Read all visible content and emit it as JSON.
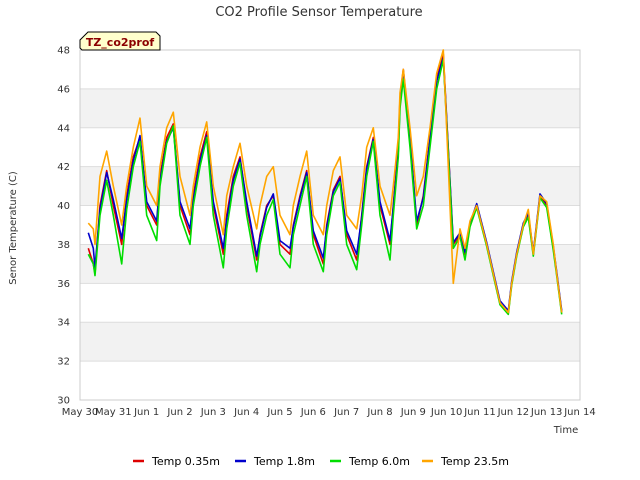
{
  "chart_data": {
    "type": "line",
    "title": "CO2 Profile Sensor Temperature",
    "xlabel": "Time",
    "ylabel": "Senor Temperature (C)",
    "badge": "TZ_co2prof",
    "ylim": [
      30,
      48
    ],
    "yticks": [
      30,
      32,
      34,
      36,
      38,
      40,
      42,
      44,
      46,
      48
    ],
    "xlim": [
      0,
      15
    ],
    "xticks": [
      "May 30",
      "May 31",
      "Jun 1",
      "Jun 2",
      "Jun 3",
      "Jun 4",
      "Jun 5",
      "Jun 6",
      "Jun 7",
      "Jun 8",
      "Jun 9",
      "Jun 10",
      "Jun 11",
      "Jun 12",
      "Jun 13",
      "Jun 14"
    ],
    "grid": true,
    "legend": "bottom",
    "series": [
      {
        "name": "Temp 0.35m",
        "color": "#dd0000",
        "x": [
          0.25,
          0.4,
          0.45,
          0.6,
          0.8,
          1.0,
          1.25,
          1.4,
          1.6,
          1.8,
          2.0,
          2.3,
          2.4,
          2.6,
          2.8,
          3.0,
          3.3,
          3.4,
          3.6,
          3.8,
          4.0,
          4.3,
          4.4,
          4.6,
          4.8,
          5.0,
          5.3,
          5.4,
          5.6,
          5.8,
          6.0,
          6.3,
          6.4,
          6.6,
          6.8,
          7.0,
          7.3,
          7.4,
          7.6,
          7.8,
          8.0,
          8.3,
          8.45,
          8.6,
          8.8,
          9.0,
          9.3,
          9.4,
          9.55,
          9.6,
          9.7,
          9.9,
          10.1,
          10.3,
          10.5,
          10.7,
          10.9,
          11.2,
          11.4,
          11.55,
          11.7,
          11.9,
          12.2,
          12.4,
          12.6,
          12.85,
          12.95,
          13.1,
          13.3,
          13.45,
          13.6,
          13.8,
          14.0,
          14.2,
          14.3,
          14.45
        ],
        "values": [
          37.8,
          37.0,
          36.5,
          40.0,
          41.8,
          40.0,
          38.0,
          40.5,
          42.5,
          43.5,
          40.0,
          39.0,
          41.5,
          43.5,
          44.2,
          40.0,
          38.5,
          40.5,
          42.5,
          43.8,
          40.0,
          37.5,
          39.5,
          41.5,
          42.5,
          40.0,
          37.2,
          38.5,
          40.0,
          40.5,
          38.0,
          37.5,
          39.0,
          40.5,
          41.8,
          38.5,
          37.0,
          39.0,
          40.8,
          41.5,
          38.5,
          37.2,
          39.5,
          42.0,
          43.5,
          40.0,
          38.0,
          40.0,
          43.0,
          45.5,
          47.0,
          43.5,
          39.0,
          40.5,
          43.5,
          46.5,
          47.8,
          38.0,
          38.5,
          37.5,
          39.0,
          40.0,
          38.0,
          36.5,
          35.0,
          34.5,
          36.0,
          37.5,
          39.0,
          39.5,
          37.5,
          40.5,
          40.0,
          37.8,
          36.5,
          34.5
        ]
      },
      {
        "name": "Temp 1.8m",
        "color": "#0000cc",
        "x": [
          0.25,
          0.4,
          0.45,
          0.6,
          0.8,
          1.0,
          1.25,
          1.4,
          1.6,
          1.8,
          2.0,
          2.3,
          2.4,
          2.6,
          2.8,
          3.0,
          3.3,
          3.4,
          3.6,
          3.8,
          4.0,
          4.3,
          4.4,
          4.6,
          4.8,
          5.0,
          5.3,
          5.4,
          5.6,
          5.8,
          6.0,
          6.3,
          6.4,
          6.6,
          6.8,
          7.0,
          7.3,
          7.4,
          7.6,
          7.8,
          8.0,
          8.3,
          8.45,
          8.6,
          8.8,
          9.0,
          9.3,
          9.4,
          9.55,
          9.6,
          9.7,
          9.9,
          10.1,
          10.3,
          10.5,
          10.7,
          10.9,
          11.2,
          11.4,
          11.55,
          11.7,
          11.9,
          12.2,
          12.4,
          12.6,
          12.85,
          12.95,
          13.1,
          13.3,
          13.45,
          13.6,
          13.8,
          14.0,
          14.2,
          14.3,
          14.45
        ],
        "values": [
          38.6,
          37.8,
          36.8,
          39.8,
          41.7,
          40.3,
          38.3,
          40.3,
          42.3,
          43.6,
          40.2,
          39.2,
          41.3,
          43.3,
          44.0,
          40.2,
          38.8,
          40.3,
          42.3,
          43.6,
          40.2,
          37.8,
          39.3,
          41.3,
          42.4,
          40.2,
          37.4,
          38.4,
          39.9,
          40.6,
          38.2,
          37.8,
          38.9,
          40.4,
          41.7,
          38.7,
          37.3,
          38.9,
          40.7,
          41.4,
          38.7,
          37.5,
          39.4,
          41.9,
          43.4,
          40.2,
          38.2,
          39.9,
          42.8,
          45.3,
          46.8,
          43.4,
          39.2,
          40.4,
          43.4,
          46.4,
          47.6,
          38.1,
          38.6,
          37.6,
          39.1,
          40.1,
          38.1,
          36.6,
          35.1,
          34.6,
          36.1,
          37.6,
          39.1,
          39.6,
          37.6,
          40.6,
          40.1,
          37.9,
          36.6,
          34.6
        ]
      },
      {
        "name": "Temp 6.0m",
        "color": "#00dd00",
        "x": [
          0.25,
          0.4,
          0.45,
          0.6,
          0.8,
          1.0,
          1.25,
          1.4,
          1.6,
          1.8,
          2.0,
          2.3,
          2.4,
          2.6,
          2.8,
          3.0,
          3.3,
          3.4,
          3.6,
          3.8,
          4.0,
          4.3,
          4.4,
          4.6,
          4.8,
          5.0,
          5.3,
          5.4,
          5.6,
          5.8,
          6.0,
          6.3,
          6.4,
          6.6,
          6.8,
          7.0,
          7.3,
          7.4,
          7.6,
          7.8,
          8.0,
          8.3,
          8.45,
          8.6,
          8.8,
          9.0,
          9.3,
          9.4,
          9.55,
          9.6,
          9.7,
          9.9,
          10.1,
          10.3,
          10.5,
          10.7,
          10.9,
          11.2,
          11.4,
          11.55,
          11.7,
          11.9,
          12.2,
          12.4,
          12.6,
          12.85,
          12.95,
          13.1,
          13.3,
          13.45,
          13.6,
          13.8,
          14.0,
          14.2,
          14.3,
          14.45
        ],
        "values": [
          37.5,
          37.0,
          36.4,
          39.5,
          41.3,
          39.5,
          37.0,
          39.8,
          42.0,
          43.3,
          39.5,
          38.2,
          41.0,
          43.2,
          44.1,
          39.5,
          38.0,
          40.0,
          42.0,
          43.5,
          39.5,
          36.8,
          38.8,
          41.0,
          42.2,
          39.5,
          36.6,
          38.0,
          39.5,
          40.3,
          37.5,
          36.8,
          38.5,
          40.0,
          41.5,
          38.0,
          36.6,
          38.5,
          40.5,
          41.2,
          38.0,
          36.7,
          39.0,
          41.5,
          43.3,
          39.5,
          37.2,
          39.5,
          42.5,
          45.0,
          46.5,
          43.0,
          38.8,
          40.0,
          43.0,
          46.0,
          47.5,
          37.8,
          38.4,
          37.2,
          38.9,
          39.9,
          37.9,
          36.4,
          34.9,
          34.4,
          35.9,
          37.4,
          38.9,
          39.4,
          37.4,
          40.4,
          39.9,
          37.7,
          36.4,
          34.4
        ]
      },
      {
        "name": "Temp 23.5m",
        "color": "#ffa500",
        "x": [
          0.25,
          0.4,
          0.45,
          0.6,
          0.8,
          1.0,
          1.25,
          1.4,
          1.6,
          1.8,
          2.0,
          2.3,
          2.4,
          2.6,
          2.8,
          3.0,
          3.3,
          3.4,
          3.6,
          3.8,
          4.0,
          4.3,
          4.4,
          4.6,
          4.8,
          5.0,
          5.3,
          5.4,
          5.6,
          5.8,
          6.0,
          6.3,
          6.4,
          6.6,
          6.8,
          7.0,
          7.3,
          7.4,
          7.6,
          7.8,
          8.0,
          8.3,
          8.45,
          8.6,
          8.8,
          9.0,
          9.3,
          9.4,
          9.55,
          9.6,
          9.7,
          9.9,
          10.1,
          10.3,
          10.5,
          10.7,
          10.9,
          11.2,
          11.4,
          11.55,
          11.7,
          11.9,
          12.2,
          12.4,
          12.6,
          12.85,
          12.95,
          13.1,
          13.3,
          13.45,
          13.6,
          13.8,
          14.0,
          14.2,
          14.3,
          14.45
        ],
        "values": [
          39.1,
          38.8,
          38.0,
          41.5,
          42.8,
          41.0,
          39.0,
          41.0,
          43.0,
          44.5,
          41.0,
          40.0,
          42.0,
          44.0,
          44.8,
          41.5,
          39.5,
          41.0,
          43.0,
          44.3,
          41.0,
          38.5,
          40.5,
          42.0,
          43.2,
          41.0,
          38.8,
          40.0,
          41.5,
          42.0,
          39.5,
          38.5,
          40.0,
          41.5,
          42.8,
          39.5,
          38.5,
          40.0,
          41.8,
          42.5,
          39.5,
          38.8,
          40.5,
          43.0,
          44.0,
          41.0,
          39.5,
          41.0,
          43.5,
          45.8,
          47.0,
          44.0,
          40.5,
          41.5,
          44.0,
          46.8,
          48.0,
          36.0,
          38.8,
          37.8,
          39.2,
          40.0,
          38.0,
          36.5,
          35.0,
          34.5,
          36.0,
          37.5,
          39.0,
          39.8,
          37.5,
          40.5,
          40.2,
          38.0,
          36.5,
          34.5
        ]
      }
    ]
  }
}
